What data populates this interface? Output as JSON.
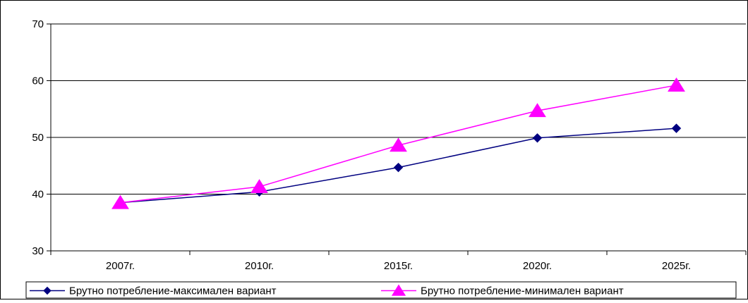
{
  "chart_data": {
    "type": "line",
    "title": "",
    "xlabel": "",
    "ylabel": "",
    "categories": [
      "2007г.",
      "2010г.",
      "2015г.",
      "2020г.",
      "2025г."
    ],
    "ylim": [
      30,
      70
    ],
    "yticks": [
      30,
      40,
      50,
      60,
      70
    ],
    "grid": "horizontal",
    "legend_position": "bottom",
    "series": [
      {
        "name": "Брутно потребление-максимален вариант",
        "values": [
          38.5,
          40.4,
          44.7,
          49.9,
          51.6
        ],
        "color": "#000080",
        "marker": "diamond"
      },
      {
        "name": "Брутно потребление-минимален вариант",
        "values": [
          38.5,
          41.3,
          48.6,
          54.7,
          59.2
        ],
        "color": "#FF00FF",
        "marker": "triangle"
      }
    ]
  }
}
